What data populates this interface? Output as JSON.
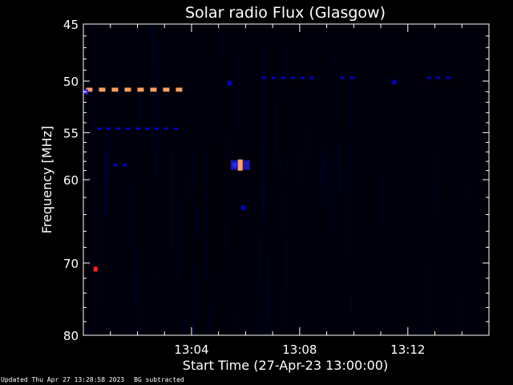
{
  "chart_data": {
    "type": "heatmap",
    "title": "Solar radio Flux (Glasgow)",
    "xlabel": "Start Time (27-Apr-23 13:00:00)",
    "ylabel": "Frequency [MHz]",
    "x_unit": "minutes after 13:00:00",
    "xlim": [
      0,
      15
    ],
    "ylim": [
      45,
      80
    ],
    "y_scale": "log",
    "y_inverted": true,
    "x_ticks": [
      {
        "value": 4,
        "label": "13:04"
      },
      {
        "value": 8,
        "label": "13:08"
      },
      {
        "value": 12,
        "label": "13:12"
      }
    ],
    "y_ticks": [
      {
        "value": 45,
        "label": "45"
      },
      {
        "value": 50,
        "label": "50"
      },
      {
        "value": 55,
        "label": "55"
      },
      {
        "value": 60,
        "label": "60"
      },
      {
        "value": 70,
        "label": "70"
      },
      {
        "value": 80,
        "label": "80"
      }
    ],
    "colormap": [
      "#000000",
      "#0000c8",
      "#ff0000",
      "#ffa060"
    ],
    "intensity_scale": "0-1 relative (BG subtracted)",
    "features": [
      {
        "kind": "dashed-band",
        "freq": 50.8,
        "t_start": 0.1,
        "t_end": 3.7,
        "intensity": 0.95
      },
      {
        "kind": "dashed-band",
        "freq": 54.6,
        "t_start": 0.5,
        "t_end": 3.7,
        "intensity": 0.35
      },
      {
        "kind": "dashed-band",
        "freq": 49.7,
        "t_start": 6.6,
        "t_end": 8.5,
        "intensity": 0.35
      },
      {
        "kind": "dashed-band",
        "freq": 49.7,
        "t_start": 9.5,
        "t_end": 10.3,
        "intensity": 0.3
      },
      {
        "kind": "dashed-band",
        "freq": 49.7,
        "t_start": 12.7,
        "t_end": 13.6,
        "intensity": 0.35
      },
      {
        "kind": "dashed-band",
        "freq": 58.4,
        "t_start": 1.1,
        "t_end": 1.9,
        "intensity": 0.25
      },
      {
        "kind": "spot",
        "freq": 58.4,
        "time": 5.8,
        "intensity": 1.0
      },
      {
        "kind": "spot",
        "freq": 58.4,
        "time": 5.6,
        "intensity": 0.45
      },
      {
        "kind": "spot",
        "freq": 70.8,
        "time": 0.45,
        "intensity": 0.85
      },
      {
        "kind": "spot",
        "freq": 51.0,
        "time": 0.1,
        "intensity": 0.5
      },
      {
        "kind": "spot",
        "freq": 50.2,
        "time": 5.4,
        "intensity": 0.3
      },
      {
        "kind": "spot",
        "freq": 50.1,
        "time": 11.5,
        "intensity": 0.3
      },
      {
        "kind": "spot",
        "freq": 63.2,
        "time": 5.9,
        "intensity": 0.2
      }
    ]
  },
  "footer": {
    "updated": "Updated Thu Apr 27 13:28:58 2023",
    "bg": "BG subtracted"
  }
}
